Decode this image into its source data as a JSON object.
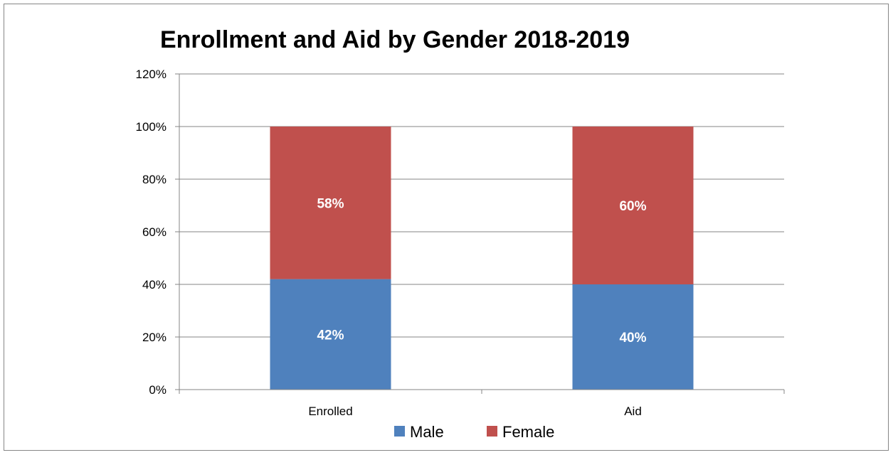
{
  "chart_data": {
    "type": "bar",
    "stacked": true,
    "title": "Enrollment and Aid by Gender 2018-2019",
    "xlabel": "",
    "ylabel": "",
    "categories": [
      "Enrolled",
      "Aid"
    ],
    "series": [
      {
        "name": "Male",
        "values": [
          42,
          40
        ],
        "labels": [
          "42%",
          "40%"
        ],
        "color": "#4f81bd"
      },
      {
        "name": "Female",
        "values": [
          58,
          60
        ],
        "labels": [
          "58%",
          "60%"
        ],
        "color": "#c0504d"
      }
    ],
    "ylim": [
      0,
      120
    ],
    "yticks": [
      0,
      20,
      40,
      60,
      80,
      100,
      120
    ],
    "ytick_labels": [
      "0%",
      "20%",
      "40%",
      "60%",
      "80%",
      "100%",
      "120%"
    ],
    "grid": true,
    "legend": {
      "position": "bottom",
      "entries": [
        "Male",
        "Female"
      ]
    }
  }
}
